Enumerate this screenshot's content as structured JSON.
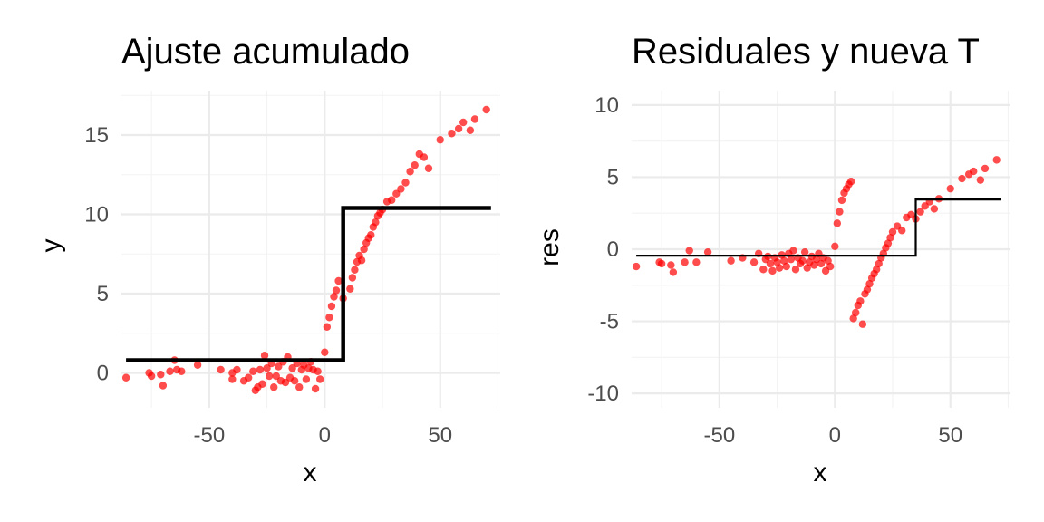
{
  "chart_data": [
    {
      "type": "scatter",
      "title": "Ajuste acumulado",
      "xlabel": "x",
      "ylabel": "y",
      "xlim": [
        -88,
        76
      ],
      "ylim": [
        -2.2,
        17.8
      ],
      "xticks": [
        -50,
        0,
        50
      ],
      "xtick_labels": [
        "-50",
        "0",
        "50"
      ],
      "yticks": [
        0,
        5,
        10,
        15
      ],
      "ytick_labels": [
        "0",
        "5",
        "10",
        "15"
      ],
      "grid": true,
      "legend": "none",
      "point_color": "#ff0000",
      "line_color": "#000000",
      "series": [
        {
          "type": "scatter",
          "x": [
            -86,
            -76,
            -75,
            -71,
            -70,
            -67,
            -65,
            -64,
            -62,
            -55,
            -45,
            -40,
            -40,
            -38,
            -35,
            -33,
            -31,
            -30,
            -29,
            -28,
            -27,
            -26,
            -25,
            -24,
            -23,
            -22,
            -21,
            -20,
            -19,
            -18,
            -17,
            -16,
            -15,
            -14,
            -13,
            -12,
            -11,
            -10,
            -9,
            -8,
            -7,
            -6,
            -5,
            -4,
            -3,
            -2,
            0,
            1,
            2,
            3,
            4,
            5,
            6,
            8,
            11,
            12,
            13,
            14,
            15,
            16,
            17,
            18,
            19,
            20,
            21,
            22,
            23,
            24,
            25,
            27,
            29,
            31,
            33,
            35,
            37,
            39,
            41,
            43,
            45,
            50,
            55,
            58,
            60,
            63,
            65,
            70
          ],
          "y": [
            -0.3,
            0.0,
            -0.2,
            -0.1,
            -0.8,
            0.1,
            0.8,
            0.2,
            0.1,
            0.5,
            0.2,
            0.0,
            -0.4,
            0.2,
            -0.5,
            -0.3,
            0.1,
            -1.1,
            -0.9,
            0.2,
            -0.7,
            1.1,
            0.3,
            -0.2,
            0.6,
            -0.9,
            -0.2,
            0.4,
            -0.5,
            0.7,
            -0.6,
            1.0,
            -0.3,
            0.3,
            -0.5,
            0.6,
            -0.9,
            0.2,
            0.5,
            -0.4,
            0.3,
            0.7,
            0.2,
            -1.0,
            0.1,
            -0.4,
            1.3,
            2.9,
            3.5,
            4.2,
            4.8,
            5.2,
            5.8,
            4.7,
            5.3,
            6.0,
            6.5,
            7.0,
            7.4,
            7.1,
            7.8,
            8.2,
            8.5,
            8.7,
            9.2,
            9.5,
            9.9,
            10.1,
            10.3,
            10.8,
            10.9,
            11.3,
            11.6,
            12.0,
            12.7,
            13.1,
            13.8,
            13.6,
            12.9,
            14.7,
            15.1,
            15.4,
            15.8,
            15.3,
            16.0,
            16.6
          ]
        },
        {
          "type": "step",
          "x": [
            -86,
            8,
            8,
            72
          ],
          "y": [
            0.8,
            0.8,
            10.4,
            10.4
          ]
        }
      ]
    },
    {
      "type": "scatter",
      "title": "Residuales y nueva T",
      "xlabel": "x",
      "ylabel": "res",
      "xlim": [
        -88,
        76
      ],
      "ylim": [
        -11,
        11
      ],
      "xticks": [
        -50,
        0,
        50
      ],
      "xtick_labels": [
        "-50",
        "0",
        "50"
      ],
      "yticks": [
        -10,
        -5,
        0,
        5,
        10
      ],
      "ytick_labels": [
        "-10",
        "-5",
        "0",
        "5",
        "10"
      ],
      "grid": true,
      "legend": "none",
      "point_color": "#ff0000",
      "line_color": "#000000",
      "series": [
        {
          "type": "scatter",
          "x": [
            -86,
            -76,
            -75,
            -71,
            -70,
            -65,
            -63,
            -60,
            -55,
            -45,
            -40,
            -35,
            -33,
            -31,
            -30,
            -29,
            -28,
            -27,
            -26,
            -25,
            -24,
            -23,
            -22,
            -21,
            -20,
            -19,
            -18,
            -17,
            -16,
            -15,
            -14,
            -13,
            -12,
            -11,
            -10,
            -9,
            -8,
            -7,
            -6,
            -5,
            -4,
            -3,
            -2,
            0,
            1,
            2,
            3,
            4,
            5,
            6,
            7,
            8,
            9,
            10,
            11,
            12,
            13,
            14,
            15,
            16,
            17,
            18,
            19,
            20,
            21,
            22,
            23,
            24,
            25,
            27,
            29,
            31,
            33,
            35,
            37,
            39,
            41,
            43,
            45,
            50,
            55,
            58,
            60,
            63,
            65,
            70
          ],
          "y": [
            -1.2,
            -0.9,
            -1.0,
            -1.1,
            -1.6,
            -0.9,
            -0.1,
            -0.9,
            -0.2,
            -0.8,
            -0.6,
            -0.9,
            -0.3,
            -1.4,
            -0.7,
            -0.5,
            -1.0,
            -1.5,
            -0.6,
            -0.9,
            -1.3,
            -0.4,
            -0.8,
            -1.2,
            -0.3,
            -0.7,
            -0.1,
            -1.4,
            -0.6,
            -1.0,
            -0.8,
            -0.2,
            -1.3,
            -0.9,
            -0.5,
            -1.1,
            -0.7,
            -0.3,
            -1.0,
            -0.6,
            -1.5,
            -0.8,
            -1.2,
            0.2,
            1.8,
            2.6,
            3.4,
            3.9,
            4.2,
            4.5,
            4.7,
            -4.8,
            -4.4,
            -3.9,
            -3.6,
            -5.2,
            -3.1,
            -2.8,
            -2.4,
            -2.0,
            -1.7,
            -1.4,
            -1.0,
            -0.6,
            -0.3,
            0.1,
            0.4,
            0.8,
            1.2,
            1.6,
            1.3,
            2.2,
            2.4,
            2.1,
            2.6,
            3.0,
            3.3,
            2.8,
            3.5,
            4.2,
            4.9,
            5.2,
            5.4,
            4.8,
            5.6,
            6.2
          ]
        },
        {
          "type": "step",
          "x": [
            -86,
            35,
            35,
            72
          ],
          "y": [
            -0.45,
            -0.45,
            3.45,
            3.45
          ]
        }
      ]
    }
  ]
}
